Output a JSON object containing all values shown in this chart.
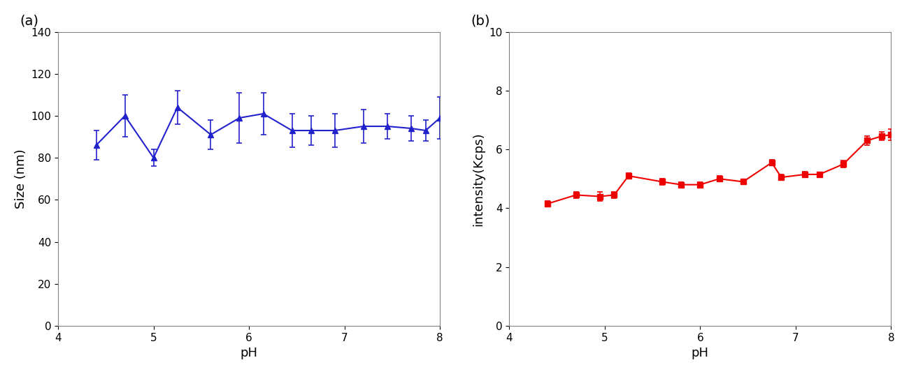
{
  "panel_a": {
    "title": "(a)",
    "xlabel": "pH",
    "ylabel": "Size (nm)",
    "xlim": [
      4,
      8
    ],
    "ylim": [
      0,
      140
    ],
    "xticks": [
      4,
      5,
      6,
      7,
      8
    ],
    "yticks": [
      0,
      20,
      40,
      60,
      80,
      100,
      120,
      140
    ],
    "color": "#2222CC",
    "marker": "^",
    "x": [
      4.4,
      4.7,
      5.0,
      5.25,
      5.6,
      5.9,
      6.15,
      6.45,
      6.65,
      6.9,
      7.2,
      7.45,
      7.7,
      7.85,
      8.0
    ],
    "y": [
      86,
      100,
      80,
      104,
      91,
      99,
      101,
      93,
      93,
      93,
      95,
      95,
      94,
      93,
      99
    ],
    "yerr": [
      7,
      10,
      4,
      8,
      7,
      12,
      10,
      8,
      7,
      8,
      8,
      6,
      6,
      5,
      10
    ]
  },
  "panel_b": {
    "title": "(b)",
    "xlabel": "pH",
    "ylabel": "intensity(Kcps)",
    "xlim": [
      4,
      8
    ],
    "ylim": [
      0,
      10
    ],
    "xticks": [
      4,
      5,
      6,
      7,
      8
    ],
    "yticks": [
      0,
      2,
      4,
      6,
      8,
      10
    ],
    "color": "#EE0000",
    "marker": "s",
    "x": [
      4.4,
      4.7,
      4.95,
      5.1,
      5.25,
      5.6,
      5.8,
      6.0,
      6.2,
      6.45,
      6.75,
      6.85,
      7.1,
      7.25,
      7.5,
      7.75,
      7.9,
      8.0
    ],
    "y": [
      4.15,
      4.45,
      4.4,
      4.45,
      5.1,
      4.9,
      4.8,
      4.8,
      5.0,
      4.9,
      5.55,
      5.05,
      5.15,
      5.15,
      5.5,
      6.3,
      6.45,
      6.5
    ],
    "yerr": [
      0.1,
      0.1,
      0.15,
      0.1,
      0.1,
      0.1,
      0.08,
      0.08,
      0.1,
      0.08,
      0.1,
      0.1,
      0.1,
      0.08,
      0.12,
      0.15,
      0.15,
      0.2
    ]
  },
  "figure_bg": "#ffffff",
  "axes_bg": "#ffffff",
  "spine_color": "#808080",
  "title_fontsize": 14,
  "label_fontsize": 13,
  "tick_fontsize": 11
}
